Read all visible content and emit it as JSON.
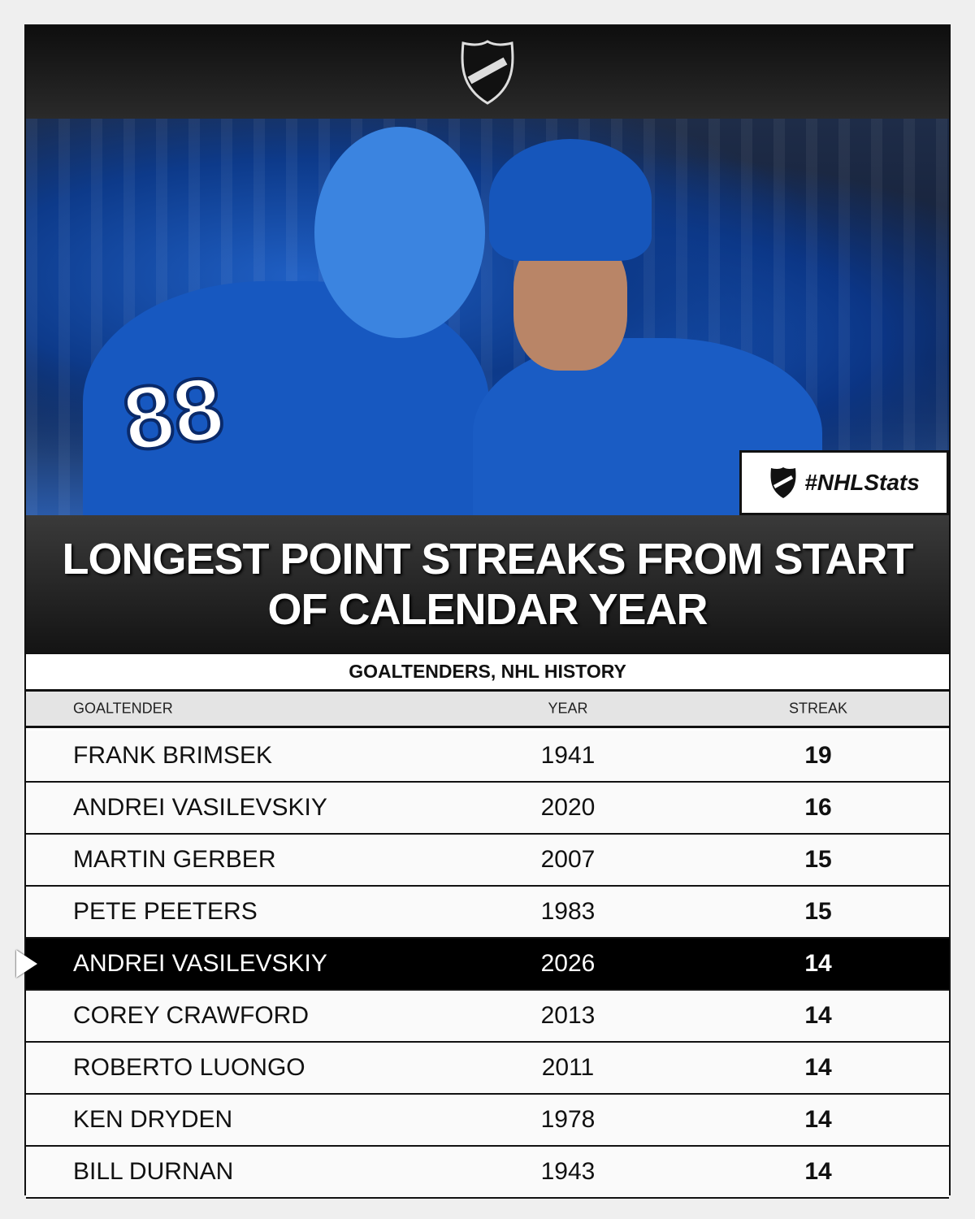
{
  "header": {
    "logo": "NHL"
  },
  "photo": {
    "jersey_number": "88",
    "hashtag": "#NHLStats"
  },
  "title": {
    "line1": "LONGEST POINT STREAKS FROM START",
    "line2": "OF CALENDAR YEAR"
  },
  "subtitle": "GOALTENDERS, NHL HISTORY",
  "columns": [
    "GOALTENDER",
    "YEAR",
    "STREAK"
  ],
  "rows": [
    {
      "name": "FRANK BRIMSEK",
      "year": "1941",
      "streak": "19"
    },
    {
      "name": "ANDREI VASILEVSKIY",
      "year": "2020",
      "streak": "16"
    },
    {
      "name": "MARTIN GERBER",
      "year": "2007",
      "streak": "15"
    },
    {
      "name": "PETE PEETERS",
      "year": "1983",
      "streak": "15"
    },
    {
      "name": "ANDREI VASILEVSKIY",
      "year": "2026",
      "streak": "14",
      "highlight": true
    },
    {
      "name": "COREY CRAWFORD",
      "year": "2013",
      "streak": "14"
    },
    {
      "name": "ROBERTO LUONGO",
      "year": "2011",
      "streak": "14"
    },
    {
      "name": "KEN DRYDEN",
      "year": "1978",
      "streak": "14"
    },
    {
      "name": "BILL DURNAN",
      "year": "1943",
      "streak": "14"
    }
  ]
}
